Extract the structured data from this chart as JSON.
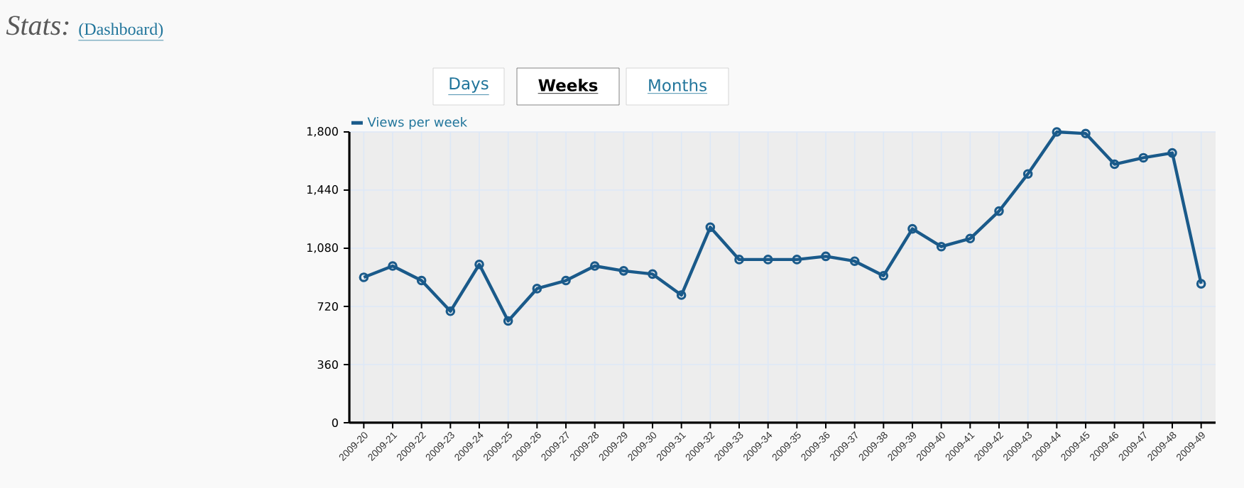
{
  "chart_data": {
    "type": "line",
    "title": "Stats:",
    "annotations": [
      "(Dashboard)",
      "Days",
      "Weeks",
      "Months"
    ],
    "categories": [
      "2009-20",
      "2009-21",
      "2009-22",
      "2009-23",
      "2009-24",
      "2009-25",
      "2009-26",
      "2009-27",
      "2009-28",
      "2009-29",
      "2009-30",
      "2009-31",
      "2009-32",
      "2009-33",
      "2009-34",
      "2009-35",
      "2009-36",
      "2009-37",
      "2009-38",
      "2009-39",
      "2009-40",
      "2009-41",
      "2009-42",
      "2009-43",
      "2009-44",
      "2009-45",
      "2009-46",
      "2009-47",
      "2009-48",
      "2009-49"
    ],
    "series": [
      {
        "name": "Views per week",
        "color": "#1a5a8a",
        "values": [
          900,
          970,
          880,
          690,
          980,
          630,
          830,
          880,
          970,
          940,
          920,
          790,
          1210,
          1010,
          1010,
          1010,
          1030,
          1000,
          910,
          1200,
          1090,
          1140,
          1310,
          1540,
          1800,
          1790,
          1600,
          1640,
          1670,
          860
        ]
      }
    ],
    "ylim": [
      0,
      1800
    ],
    "yticks": [
      0,
      360,
      720,
      {
        "value": 1080,
        "label": "1,080"
      },
      {
        "value": 1440,
        "label": "1,440"
      },
      {
        "value": 1800,
        "label": "1,800"
      }
    ],
    "grid": true,
    "legend": "top left",
    "marker": "circle",
    "line_style": "solid"
  }
}
